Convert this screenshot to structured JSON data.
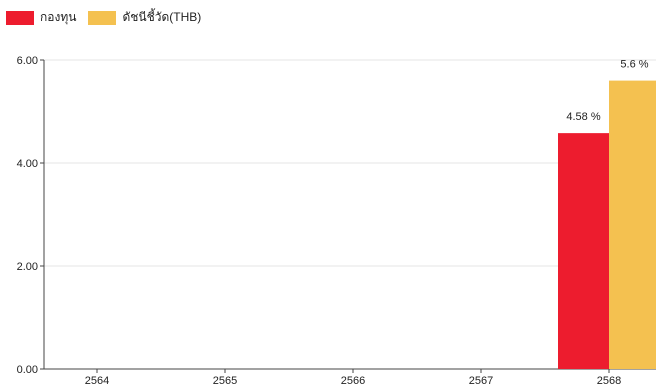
{
  "chart_data": {
    "type": "bar",
    "categories": [
      "2564",
      "2565",
      "2566",
      "2567",
      "2568"
    ],
    "series": [
      {
        "name": "กองทุน",
        "color": "#ed1c2e",
        "values": [
          null,
          null,
          null,
          null,
          4.58
        ],
        "labels": [
          "",
          "",
          "",
          "",
          "4.58 %"
        ]
      },
      {
        "name": "ดัชนีชี้วัด(THB)",
        "color": "#f4c150",
        "values": [
          null,
          null,
          null,
          null,
          5.6
        ],
        "labels": [
          "",
          "",
          "",
          "",
          "5.6 %"
        ]
      }
    ],
    "y_ticks": [
      "0.00",
      "2.00",
      "4.00",
      "6.00"
    ],
    "ylim": [
      0,
      6
    ],
    "grid": true,
    "legend_position": "top-left"
  }
}
